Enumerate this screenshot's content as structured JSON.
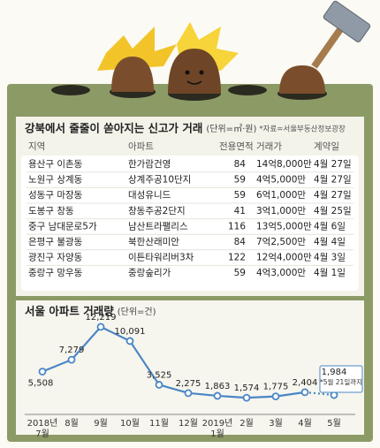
{
  "table": {
    "title": "강북에서 줄줄이 쏟아지는 신고가 거래",
    "unit": "(단위=㎡·원)",
    "source": "*자료=서울부동산정보광장",
    "header": [
      "지역",
      "아파트",
      "전용면적",
      "거래가",
      "계약일"
    ],
    "rows": [
      [
        "용산구 이촌동",
        "한가람건영",
        "84",
        "14억8,000만",
        "4월 27일"
      ],
      [
        "노원구 상계동",
        "상계주공10단지",
        "59",
        "4억5,000만",
        "4월 27일"
      ],
      [
        "성동구 마장동",
        "대성유니드",
        "59",
        "6억1,000만",
        "4월 27일"
      ],
      [
        "도봉구 창동",
        "창동주공2단지",
        "41",
        "3억1,000만",
        "4월 25일"
      ],
      [
        "중구 남대문로5가",
        "남산트라팰리스",
        "116",
        "13억5,000만",
        "4월 6일"
      ],
      [
        "은평구 불광동",
        "북한산래미안",
        "84",
        "7억2,500만",
        "4월 4일"
      ],
      [
        "광진구 자양동",
        "이튼타워리버3차",
        "122",
        "12억4,000만",
        "4월 3일"
      ],
      [
        "중랑구 망우동",
        "중랑숲리가",
        "59",
        "4억3,000만",
        "4월 1일"
      ]
    ]
  },
  "chart_data": {
    "type": "line",
    "title": "서울 아파트 거래량",
    "subtitle": "(단위=건)",
    "categories": [
      "2018년\n7월",
      "8월",
      "9월",
      "10월",
      "11월",
      "12월",
      "2019년\n1월",
      "2월",
      "3월",
      "4월",
      "5월"
    ],
    "series": [
      {
        "name": "거래량",
        "color": "#4a86c5",
        "values": [
          5508,
          7279,
          12219,
          10091,
          3525,
          2275,
          1863,
          1574,
          1775,
          2404,
          1984
        ],
        "value_labels": [
          "5,508",
          "7,279",
          "12,219",
          "10,091",
          "3,525",
          "2,275",
          "1,863",
          "1,574",
          "1,775",
          "2,404",
          "1,984"
        ]
      }
    ],
    "last_segment_dashed": true,
    "annotation": "*5월 21일까지",
    "ylim": [
      0,
      13000
    ]
  }
}
